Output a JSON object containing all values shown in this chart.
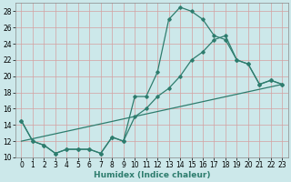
{
  "xlabel": "Humidex (Indice chaleur)",
  "background_color": "#cce8ea",
  "grid_color": "#d4a0a0",
  "line_color": "#2e7d6e",
  "xlim": [
    -0.5,
    23.5
  ],
  "ylim": [
    10,
    29
  ],
  "xticks": [
    0,
    1,
    2,
    3,
    4,
    5,
    6,
    7,
    8,
    9,
    10,
    11,
    12,
    13,
    14,
    15,
    16,
    17,
    18,
    19,
    20,
    21,
    22,
    23
  ],
  "yticks": [
    10,
    12,
    14,
    16,
    18,
    20,
    22,
    24,
    26,
    28
  ],
  "series1_x": [
    0,
    1,
    2,
    3,
    4,
    5,
    6,
    7,
    8,
    9,
    10,
    11,
    12,
    13,
    14,
    15,
    16,
    17,
    18,
    19,
    20,
    21,
    22,
    23
  ],
  "series1_y": [
    14.5,
    12.0,
    11.5,
    10.5,
    11.0,
    11.0,
    11.0,
    10.5,
    12.5,
    12.0,
    17.5,
    17.5,
    20.5,
    27.0,
    28.5,
    28.0,
    27.0,
    25.0,
    24.5,
    22.0,
    21.5,
    19.0,
    19.5,
    19.0
  ],
  "series2_x": [
    0,
    1,
    2,
    3,
    4,
    5,
    6,
    7,
    8,
    9,
    10,
    11,
    12,
    13,
    14,
    15,
    16,
    17,
    18,
    19,
    20,
    21,
    22,
    23
  ],
  "series2_y": [
    14.5,
    12.0,
    11.5,
    10.5,
    11.0,
    11.0,
    11.0,
    10.5,
    12.5,
    12.0,
    15.0,
    16.0,
    17.5,
    18.5,
    20.0,
    22.0,
    23.0,
    24.5,
    25.0,
    22.0,
    21.5,
    19.0,
    19.5,
    19.0
  ],
  "series3_x": [
    0,
    23
  ],
  "series3_y": [
    12.0,
    19.0
  ],
  "tick_fontsize": 5.5,
  "xlabel_fontsize": 6.5
}
